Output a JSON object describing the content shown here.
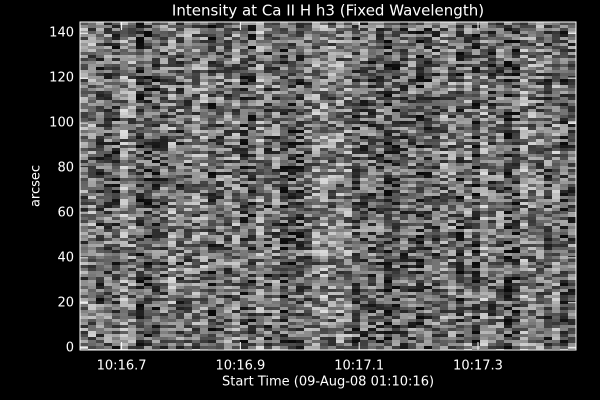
{
  "chart_data": {
    "type": "image",
    "title": "Intensity at Ca II H h3 (Fixed Wavelength)",
    "x_label": "Start Time (09-Aug-08 01:10:16)",
    "y_label": "arcsec",
    "xlim": [
      16.63,
      17.465
    ],
    "xticks": [
      {
        "value": 16.7,
        "label": "10:16.7"
      },
      {
        "value": 16.9,
        "label": "10:16.9"
      },
      {
        "value": 17.1,
        "label": "10:17.1"
      },
      {
        "value": 17.3,
        "label": "10:17.3"
      }
    ],
    "ylim": [
      -1,
      145
    ],
    "yticks": [
      0,
      20,
      40,
      60,
      80,
      100,
      120,
      140
    ],
    "colormap": "gray"
  }
}
